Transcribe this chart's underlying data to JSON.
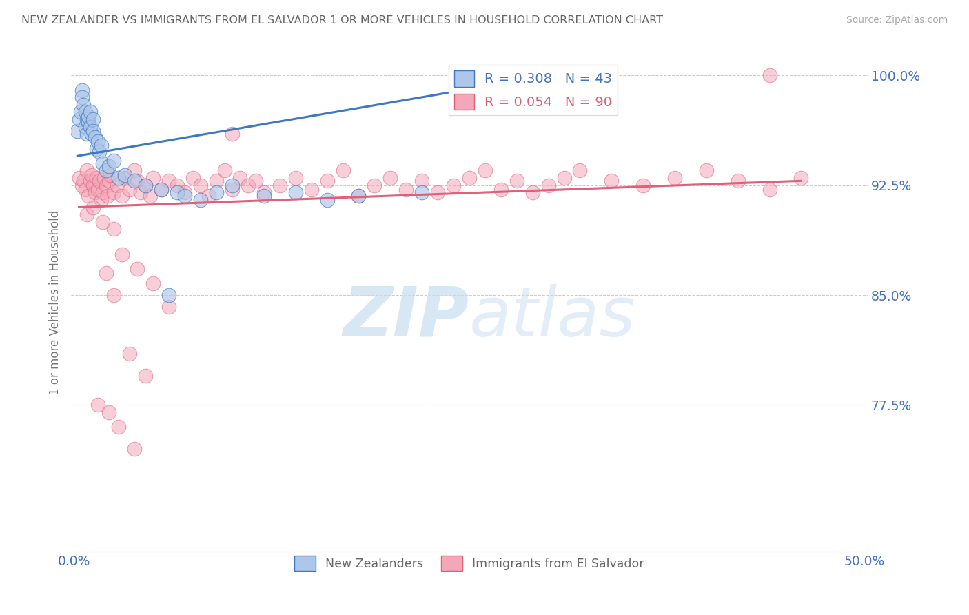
{
  "title": "NEW ZEALANDER VS IMMIGRANTS FROM EL SALVADOR 1 OR MORE VEHICLES IN HOUSEHOLD CORRELATION CHART",
  "source": "Source: ZipAtlas.com",
  "ylabel": "1 or more Vehicles in Household",
  "ytick_labels": [
    "100.0%",
    "92.5%",
    "85.0%",
    "77.5%"
  ],
  "ytick_values": [
    1.0,
    0.925,
    0.85,
    0.775
  ],
  "ylim": [
    0.675,
    1.015
  ],
  "xlim": [
    -0.002,
    0.502
  ],
  "legend_r1": "R = 0.308",
  "legend_n1": "N = 43",
  "legend_r2": "R = 0.054",
  "legend_n2": "N = 90",
  "color_blue": "#aec6e8",
  "color_pink": "#f4a7b9",
  "line_blue": "#3c78c3",
  "line_pink": "#e0607a",
  "title_color": "#666666",
  "label_color": "#4472c4",
  "watermark": "ZIPatlas",
  "nz_x": [
    0.002,
    0.003,
    0.004,
    0.005,
    0.005,
    0.006,
    0.007,
    0.007,
    0.008,
    0.008,
    0.009,
    0.009,
    0.01,
    0.01,
    0.011,
    0.012,
    0.012,
    0.013,
    0.014,
    0.015,
    0.016,
    0.017,
    0.018,
    0.02,
    0.022,
    0.025,
    0.028,
    0.032,
    0.038,
    0.045,
    0.055,
    0.06,
    0.065,
    0.07,
    0.08,
    0.09,
    0.1,
    0.12,
    0.14,
    0.16,
    0.18,
    0.22,
    0.29
  ],
  "nz_y": [
    0.962,
    0.97,
    0.975,
    0.99,
    0.985,
    0.98,
    0.975,
    0.965,
    0.97,
    0.96,
    0.968,
    0.972,
    0.975,
    0.965,
    0.96,
    0.97,
    0.962,
    0.958,
    0.95,
    0.955,
    0.948,
    0.952,
    0.94,
    0.935,
    0.938,
    0.942,
    0.93,
    0.932,
    0.928,
    0.925,
    0.922,
    0.85,
    0.92,
    0.918,
    0.915,
    0.92,
    0.925,
    0.918,
    0.92,
    0.915,
    0.918,
    0.92,
    0.998
  ],
  "sal_x": [
    0.003,
    0.005,
    0.006,
    0.007,
    0.008,
    0.009,
    0.01,
    0.011,
    0.012,
    0.013,
    0.014,
    0.015,
    0.016,
    0.017,
    0.018,
    0.019,
    0.02,
    0.021,
    0.022,
    0.023,
    0.025,
    0.027,
    0.03,
    0.032,
    0.035,
    0.038,
    0.04,
    0.042,
    0.045,
    0.048,
    0.05,
    0.055,
    0.06,
    0.065,
    0.07,
    0.075,
    0.08,
    0.085,
    0.09,
    0.095,
    0.1,
    0.105,
    0.11,
    0.115,
    0.12,
    0.13,
    0.14,
    0.15,
    0.16,
    0.17,
    0.18,
    0.19,
    0.2,
    0.21,
    0.22,
    0.23,
    0.24,
    0.25,
    0.26,
    0.27,
    0.28,
    0.29,
    0.3,
    0.31,
    0.32,
    0.34,
    0.36,
    0.38,
    0.4,
    0.42,
    0.44,
    0.46,
    0.008,
    0.012,
    0.018,
    0.025,
    0.03,
    0.04,
    0.05,
    0.06,
    0.02,
    0.025,
    0.035,
    0.045,
    0.015,
    0.022,
    0.028,
    0.038,
    0.44,
    0.1
  ],
  "sal_y": [
    0.93,
    0.925,
    0.928,
    0.922,
    0.935,
    0.918,
    0.928,
    0.932,
    0.925,
    0.92,
    0.93,
    0.922,
    0.928,
    0.915,
    0.92,
    0.93,
    0.925,
    0.918,
    0.928,
    0.932,
    0.92,
    0.925,
    0.918,
    0.93,
    0.922,
    0.935,
    0.928,
    0.92,
    0.925,
    0.918,
    0.93,
    0.922,
    0.928,
    0.925,
    0.92,
    0.93,
    0.925,
    0.918,
    0.928,
    0.935,
    0.922,
    0.93,
    0.925,
    0.928,
    0.92,
    0.925,
    0.93,
    0.922,
    0.928,
    0.935,
    0.918,
    0.925,
    0.93,
    0.922,
    0.928,
    0.92,
    0.925,
    0.93,
    0.935,
    0.922,
    0.928,
    0.92,
    0.925,
    0.93,
    0.935,
    0.928,
    0.925,
    0.93,
    0.935,
    0.928,
    0.922,
    0.93,
    0.905,
    0.91,
    0.9,
    0.895,
    0.878,
    0.868,
    0.858,
    0.842,
    0.865,
    0.85,
    0.81,
    0.795,
    0.775,
    0.77,
    0.76,
    0.745,
    1.0,
    0.96
  ],
  "nz_trendline_x": [
    0.002,
    0.29
  ],
  "nz_trendline_y": [
    0.945,
    0.998
  ],
  "sal_trendline_x": [
    0.003,
    0.46
  ],
  "sal_trendline_y": [
    0.91,
    0.928
  ]
}
